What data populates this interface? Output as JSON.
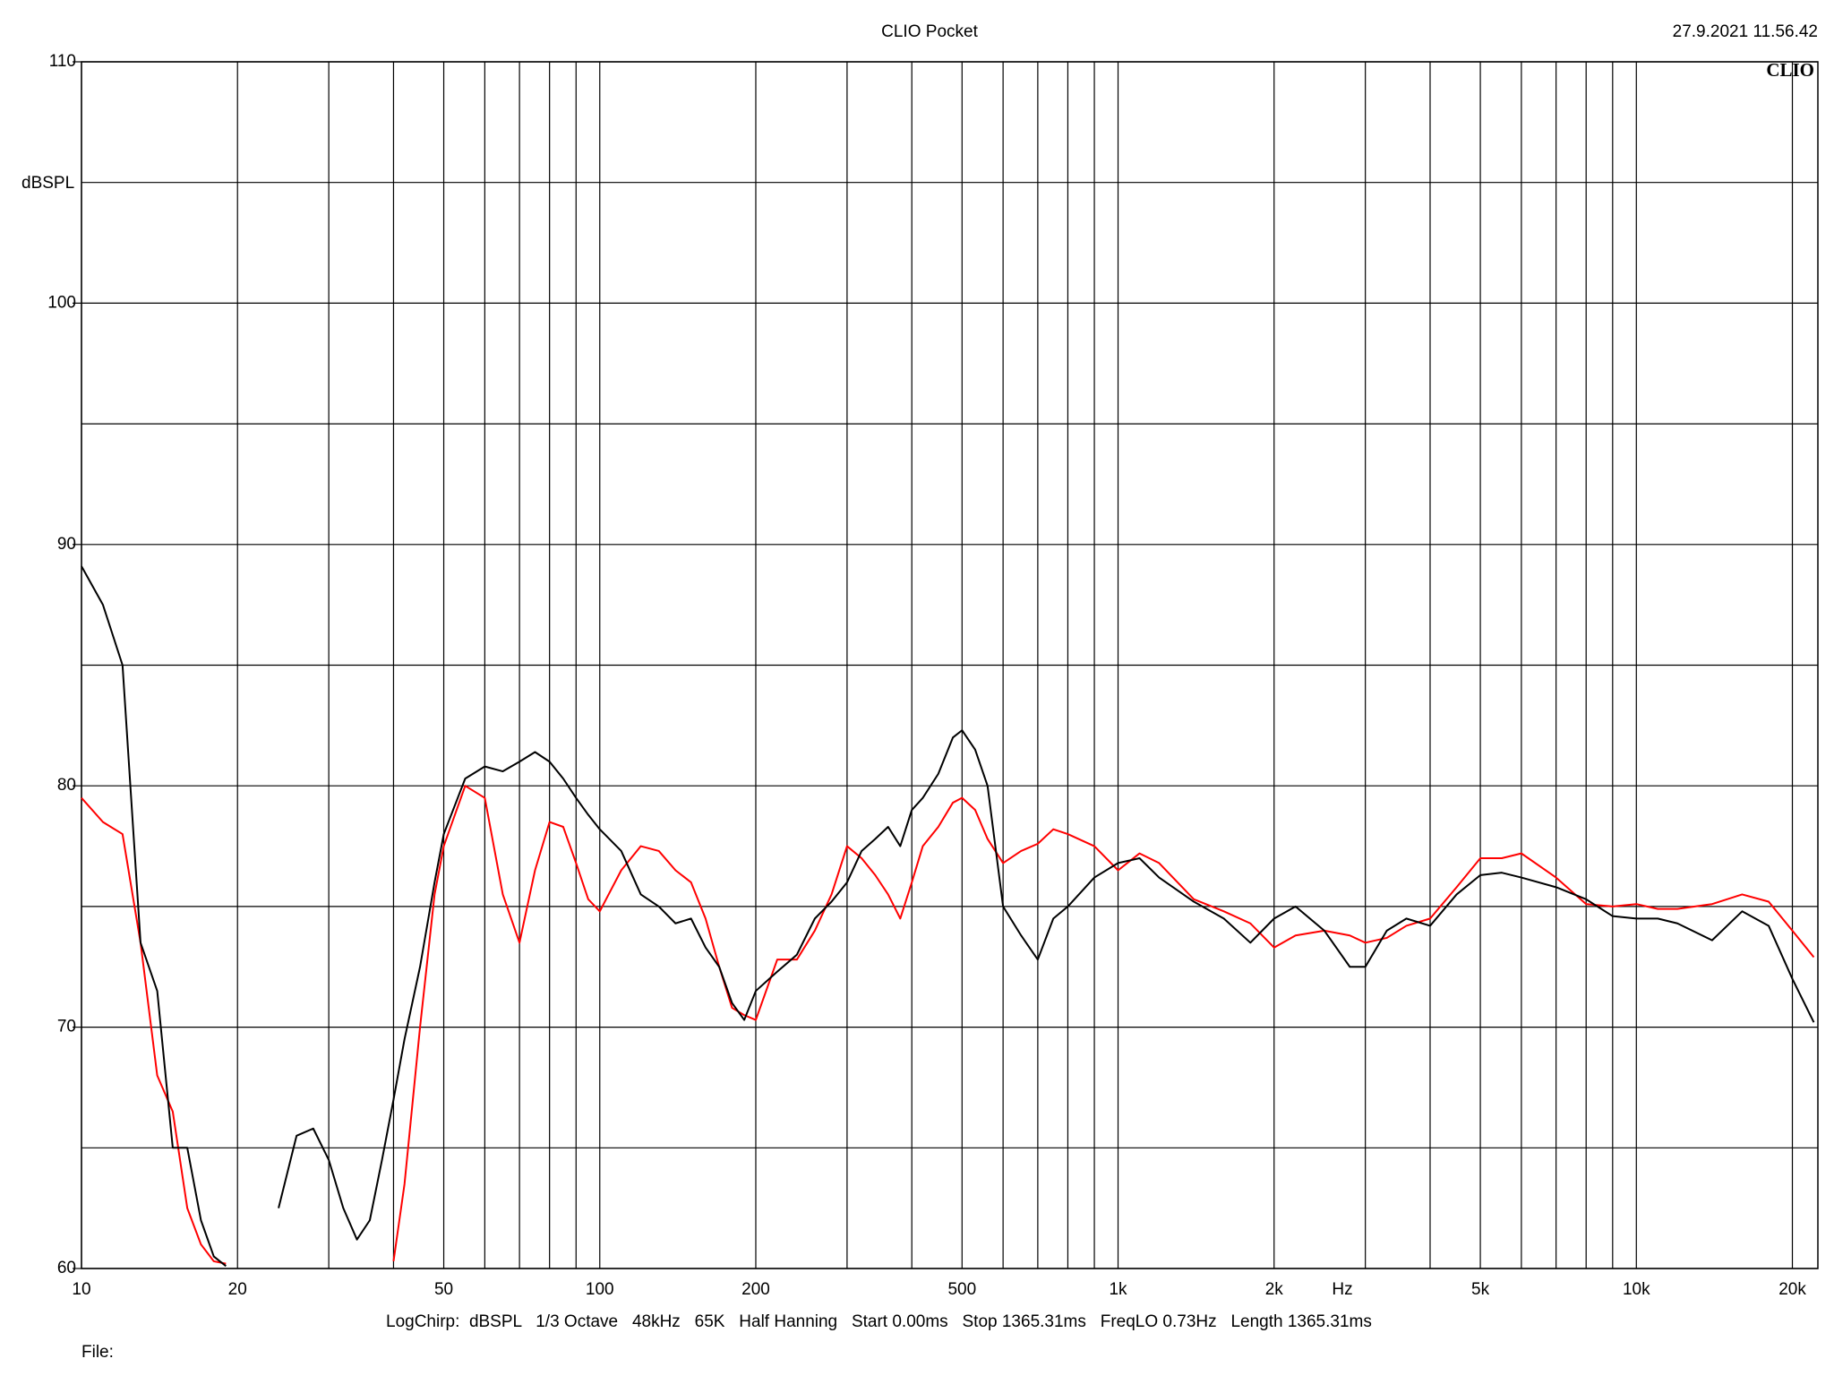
{
  "chart_data": {
    "type": "line",
    "title": "CLIO Pocket",
    "timestamp": "27.9.2021 11.56.42",
    "logo": "CLIO",
    "ylabel": "dBSPL",
    "xlabel": "Hz",
    "footer": "LogChirp:  dBSPL   1/3 Octave   48kHz   65K   Half Hanning   Start 0.00ms   Stop 1365.31ms   FreqLO 0.73Hz   Length 1365.31ms",
    "file_label": "File:",
    "xscale": "log",
    "grid": true,
    "xlim": [
      10,
      22400
    ],
    "ylim": [
      60,
      110
    ],
    "xticks": [
      10,
      20,
      50,
      100,
      200,
      500,
      {
        "value": 1000,
        "label": "1k"
      },
      {
        "value": 2000,
        "label": "2k"
      },
      {
        "value": 5000,
        "label": "5k"
      },
      {
        "value": 10000,
        "label": "10k"
      },
      {
        "value": 20000,
        "label": "20k"
      }
    ],
    "xgrid": [
      30,
      40,
      60,
      70,
      80,
      90,
      300,
      400,
      600,
      700,
      800,
      900,
      3000,
      4000,
      6000,
      7000,
      8000,
      9000
    ],
    "yticks": [
      60,
      70,
      80,
      90,
      100,
      110
    ],
    "ygrid": [
      65,
      75,
      85,
      95,
      105
    ],
    "x": [
      10,
      11,
      12,
      13,
      14,
      15,
      16,
      17,
      18,
      19,
      20,
      22,
      24,
      26,
      28,
      30,
      32,
      34,
      36,
      38,
      40,
      42,
      45,
      48,
      50,
      55,
      60,
      65,
      70,
      75,
      80,
      85,
      90,
      95,
      100,
      110,
      120,
      130,
      140,
      150,
      160,
      170,
      180,
      190,
      200,
      220,
      240,
      260,
      280,
      300,
      320,
      340,
      360,
      380,
      400,
      420,
      450,
      480,
      500,
      530,
      560,
      600,
      650,
      700,
      750,
      800,
      900,
      1000,
      1100,
      1200,
      1400,
      1600,
      1800,
      2000,
      2200,
      2500,
      2800,
      3000,
      3300,
      3600,
      4000,
      4500,
      5000,
      5500,
      6000,
      7000,
      8000,
      9000,
      10000,
      11000,
      12000,
      14000,
      16000,
      18000,
      20000,
      22000
    ],
    "series": [
      {
        "color": "#000000",
        "values": [
          89.1,
          87.5,
          85,
          73.5,
          71.5,
          65,
          65,
          62,
          60.5,
          60.1,
          null,
          null,
          62.5,
          65.5,
          65.8,
          64.5,
          62.5,
          61.2,
          62,
          64.5,
          67,
          69.5,
          72.5,
          76,
          78,
          80.3,
          80.8,
          80.6,
          81,
          81.4,
          81,
          80.3,
          79.5,
          78.8,
          78.2,
          77.3,
          75.5,
          75,
          74.3,
          74.5,
          73.3,
          72.5,
          71,
          70.3,
          71.5,
          72.3,
          73,
          74.5,
          75.2,
          76,
          77.3,
          77.8,
          78.3,
          77.5,
          79,
          79.5,
          80.5,
          82,
          82.3,
          81.5,
          80,
          75,
          73.8,
          72.8,
          74.5,
          75,
          76.2,
          76.8,
          77,
          76.2,
          75.2,
          74.5,
          73.5,
          74.5,
          75,
          74,
          72.5,
          72.5,
          74,
          74.5,
          74.2,
          75.5,
          76.3,
          76.4,
          76.2,
          75.8,
          75.3,
          74.6,
          74.5,
          74.5,
          74.3,
          73.6,
          74.8,
          74.2,
          72,
          70.2
        ]
      },
      {
        "color": "#ff0000",
        "values": [
          79.5,
          78.5,
          78,
          73.5,
          68,
          66.5,
          62.5,
          61,
          60.3,
          60.2,
          null,
          null,
          null,
          null,
          null,
          null,
          null,
          null,
          null,
          null,
          60.3,
          63.5,
          70,
          75.5,
          77.5,
          80,
          79.5,
          75.5,
          73.5,
          76.5,
          78.5,
          78.3,
          76.8,
          75.3,
          74.8,
          76.5,
          77.5,
          77.3,
          76.5,
          76,
          74.5,
          72.5,
          70.8,
          70.5,
          70.3,
          72.8,
          72.8,
          74,
          75.5,
          77.5,
          77,
          76.3,
          75.5,
          74.5,
          76,
          77.5,
          78.3,
          79.3,
          79.5,
          79,
          77.8,
          76.8,
          77.3,
          77.6,
          78.2,
          78,
          77.5,
          76.5,
          77.2,
          76.8,
          75.3,
          74.8,
          74.3,
          73.3,
          73.8,
          74,
          73.8,
          73.5,
          73.7,
          74.2,
          74.5,
          75.8,
          77,
          77,
          77.2,
          76.2,
          75.1,
          75,
          75.1,
          74.9,
          74.9,
          75.1,
          75.5,
          75.2,
          74,
          72.9
        ]
      }
    ]
  }
}
